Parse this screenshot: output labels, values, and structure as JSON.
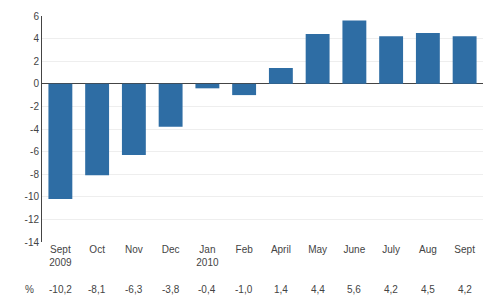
{
  "chart_data": {
    "type": "bar",
    "categories": [
      "Sept\n2009",
      "Oct",
      "Nov",
      "Dec",
      "Jan\n2010",
      "Feb",
      "April",
      "May",
      "June",
      "July",
      "Aug",
      "Sept"
    ],
    "values": [
      -10.2,
      -8.1,
      -6.3,
      -3.8,
      -0.4,
      -1.0,
      1.4,
      4.4,
      5.6,
      4.2,
      4.5,
      4.2
    ],
    "value_labels": [
      "-10,2",
      "-8,1",
      "-6,3",
      "-3,8",
      "-0,4",
      "-1,0",
      "1,4",
      "4,4",
      "5,6",
      "4,2",
      "4,5",
      "4,2"
    ],
    "annotations": [
      {
        "text": "%"
      }
    ],
    "color": "#2E6DA4",
    "ylim": [
      -14,
      6
    ],
    "yticks": [
      -14,
      -12,
      -10,
      -8,
      -6,
      -4,
      -2,
      0,
      2,
      4,
      6
    ],
    "grid": true
  }
}
